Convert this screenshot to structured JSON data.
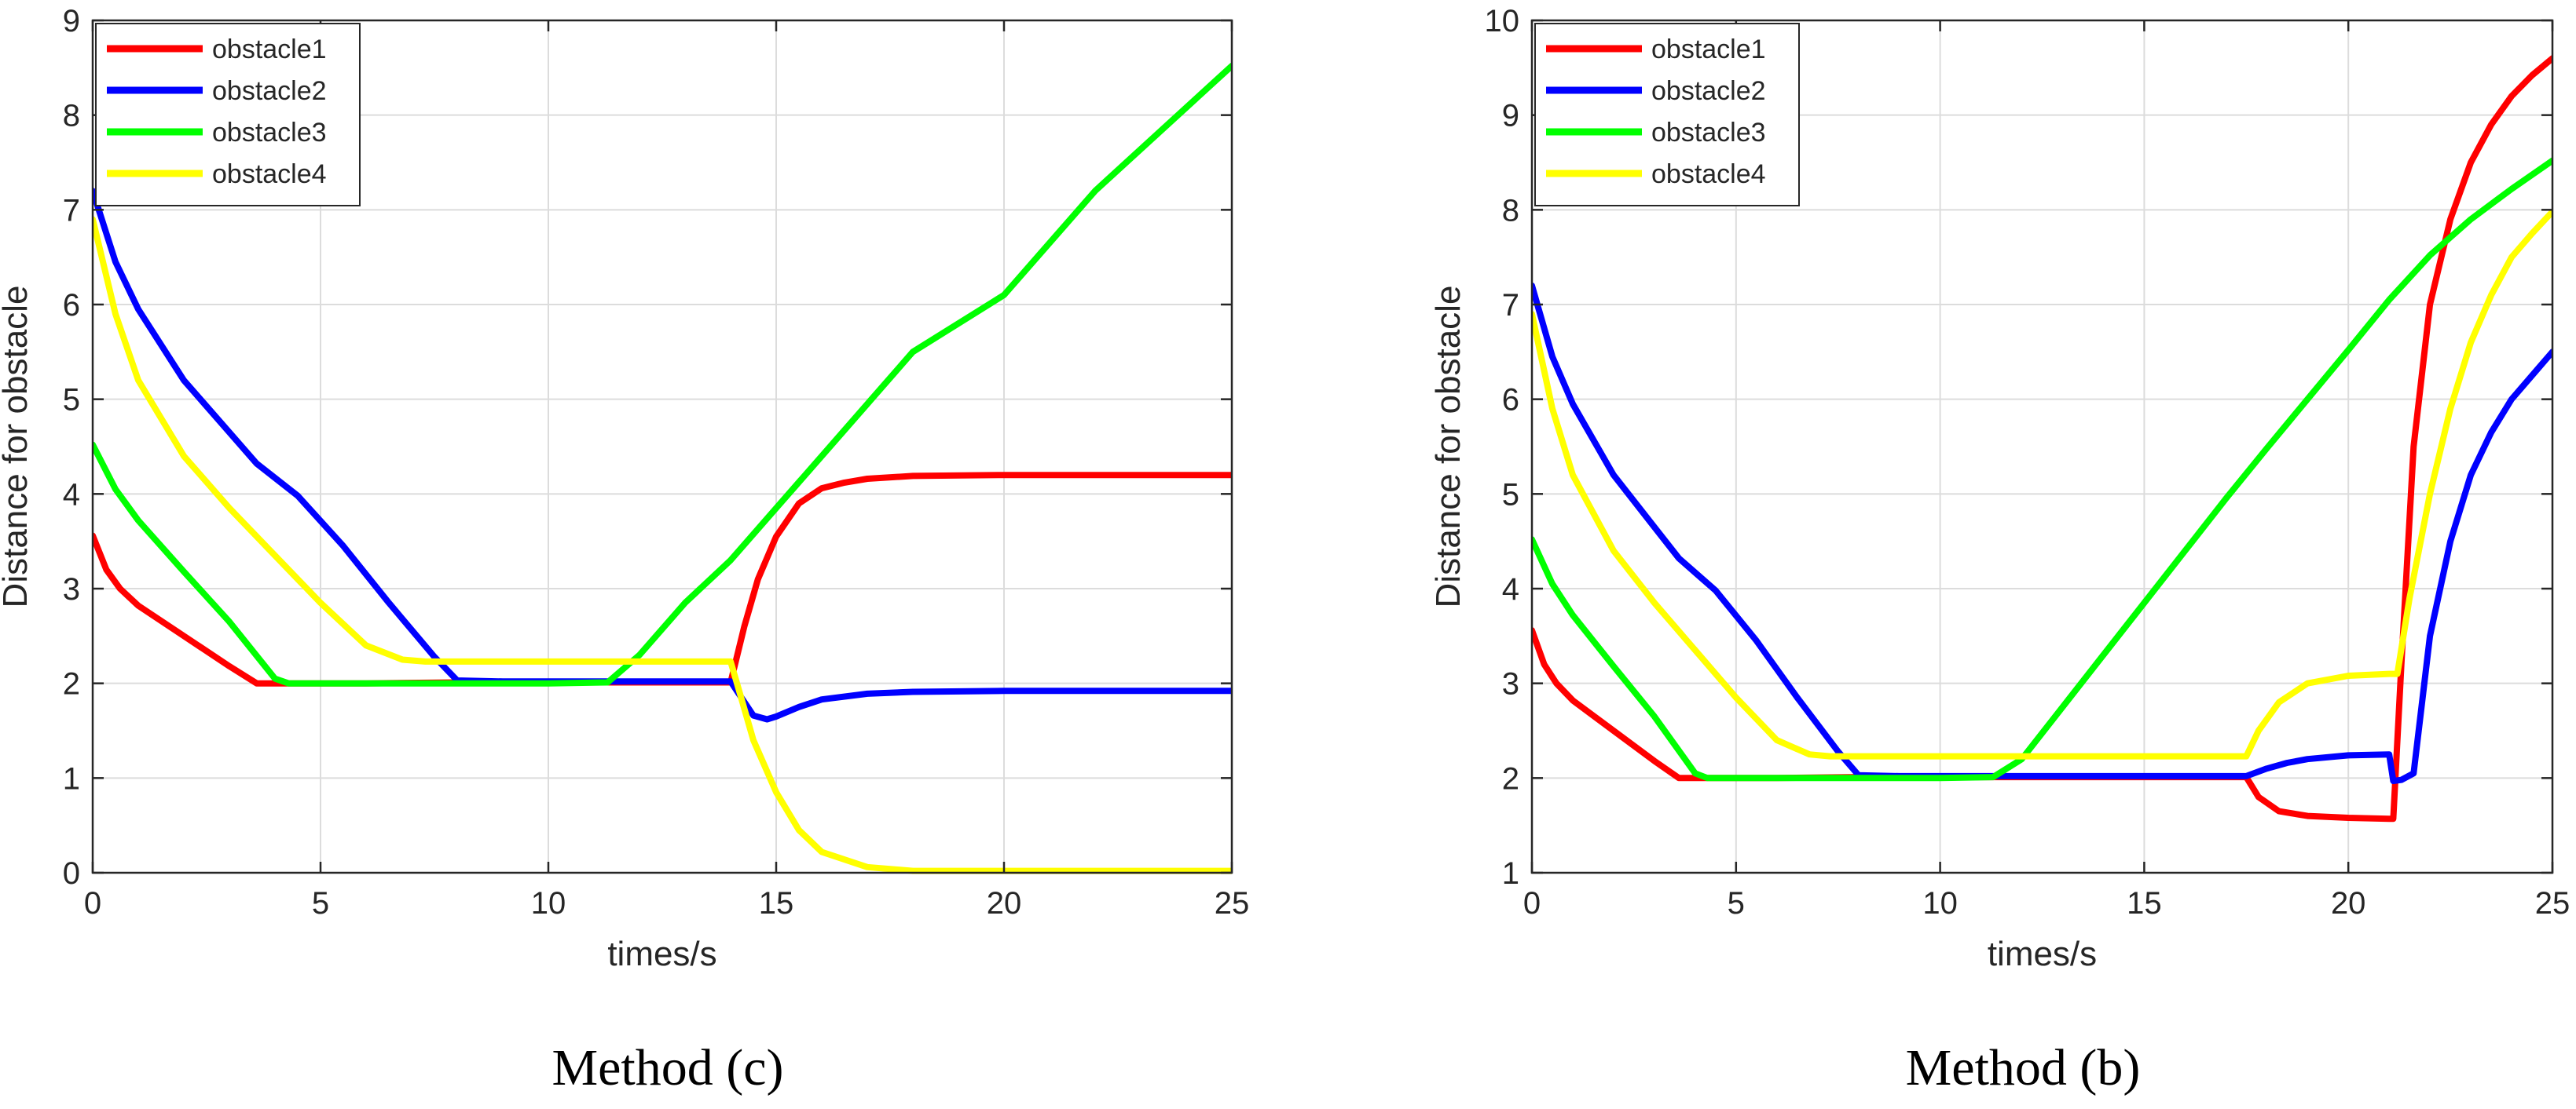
{
  "chart_data": [
    {
      "type": "line",
      "caption": "Method (c)",
      "xlabel": "times/s",
      "ylabel": "Distance for obstacle",
      "xlim": [
        0,
        25
      ],
      "ylim": [
        0,
        9
      ],
      "xticks": [
        "0",
        "5",
        "10",
        "15",
        "20",
        "25"
      ],
      "yticks": [
        "0",
        "1",
        "2",
        "3",
        "4",
        "5",
        "6",
        "7",
        "8",
        "9"
      ],
      "grid": true,
      "legend_position": "top-left",
      "series": [
        {
          "name": "obstacle1",
          "color": "#ff0000",
          "x": [
            0,
            0.3,
            0.6,
            1,
            2,
            3,
            3.6,
            4.2,
            6,
            8,
            10,
            12,
            14,
            14.3,
            14.6,
            15,
            15.5,
            16,
            16.5,
            17,
            18,
            20,
            25
          ],
          "y": [
            3.56,
            3.2,
            3.0,
            2.82,
            2.5,
            2.18,
            2.0,
            2.0,
            2.0,
            2.01,
            2.01,
            2.01,
            2.01,
            2.6,
            3.1,
            3.55,
            3.9,
            4.06,
            4.12,
            4.16,
            4.19,
            4.2,
            4.2
          ]
        },
        {
          "name": "obstacle2",
          "color": "#0000ff",
          "x": [
            0,
            0.5,
            1,
            2,
            3,
            3.6,
            4.5,
            5.5,
            6.5,
            7.5,
            8,
            9,
            10,
            12,
            14,
            14.5,
            14.8,
            15,
            15.5,
            16,
            17,
            18,
            20,
            25
          ],
          "y": [
            7.2,
            6.45,
            5.95,
            5.2,
            4.65,
            4.32,
            3.98,
            3.45,
            2.85,
            2.28,
            2.03,
            2.02,
            2.02,
            2.02,
            2.02,
            1.66,
            1.62,
            1.65,
            1.75,
            1.83,
            1.89,
            1.91,
            1.92,
            1.92
          ]
        },
        {
          "name": "obstacle3",
          "color": "#00ff00",
          "x": [
            0,
            0.5,
            1,
            2,
            3,
            4,
            4.3,
            6,
            8,
            10,
            11.3,
            12,
            13,
            14,
            15,
            16,
            17,
            18,
            20,
            22,
            25
          ],
          "y": [
            4.52,
            4.05,
            3.72,
            3.18,
            2.65,
            2.05,
            2.0,
            2.0,
            2.0,
            2.0,
            2.01,
            2.3,
            2.85,
            3.3,
            3.85,
            4.4,
            4.95,
            5.5,
            6.1,
            7.2,
            8.52
          ]
        },
        {
          "name": "obstacle4",
          "color": "#ffff00",
          "x": [
            0,
            0.5,
            1,
            2,
            3,
            4,
            5,
            6,
            6.8,
            7.3,
            8,
            10,
            12,
            14,
            14.2,
            14.5,
            15,
            15.5,
            16,
            17,
            18,
            20,
            25
          ],
          "y": [
            6.9,
            5.9,
            5.2,
            4.4,
            3.85,
            3.35,
            2.85,
            2.4,
            2.25,
            2.23,
            2.23,
            2.23,
            2.23,
            2.23,
            1.9,
            1.4,
            0.85,
            0.45,
            0.22,
            0.06,
            0.02,
            0.02,
            0.02
          ]
        }
      ]
    },
    {
      "type": "line",
      "caption": "Method (b)",
      "xlabel": "times/s",
      "ylabel": "Distance for obstacle",
      "xlim": [
        0,
        25
      ],
      "ylim": [
        1,
        10
      ],
      "xticks": [
        "0",
        "5",
        "10",
        "15",
        "20",
        "25"
      ],
      "yticks": [
        "1",
        "2",
        "3",
        "4",
        "5",
        "6",
        "7",
        "8",
        "9",
        "10"
      ],
      "grid": true,
      "legend_position": "top-left",
      "series": [
        {
          "name": "obstacle1",
          "color": "#ff0000",
          "x": [
            0,
            0.3,
            0.6,
            1,
            2,
            3,
            3.6,
            4.2,
            6,
            8,
            10,
            12,
            14,
            16,
            17.5,
            17.8,
            18.3,
            19,
            20,
            21,
            21.1,
            21.3,
            21.6,
            22,
            22.5,
            23,
            23.5,
            24,
            24.5,
            25
          ],
          "y": [
            3.56,
            3.2,
            3.0,
            2.82,
            2.5,
            2.18,
            2.0,
            2.0,
            2.0,
            2.01,
            2.01,
            2.01,
            2.01,
            2.01,
            2.01,
            1.8,
            1.65,
            1.6,
            1.58,
            1.57,
            1.57,
            3.2,
            5.5,
            7.0,
            7.9,
            8.5,
            8.9,
            9.2,
            9.42,
            9.6
          ]
        },
        {
          "name": "obstacle2",
          "color": "#0000ff",
          "x": [
            0,
            0.5,
            1,
            2,
            3,
            3.6,
            4.5,
            5.5,
            6.5,
            7.5,
            8,
            9,
            10,
            12,
            14,
            16,
            17.5,
            18,
            18.5,
            19,
            20,
            21,
            21.1,
            21.3,
            21.6,
            22,
            22.5,
            23,
            23.5,
            24,
            24.5,
            25
          ],
          "y": [
            7.2,
            6.45,
            5.95,
            5.2,
            4.65,
            4.32,
            3.98,
            3.45,
            2.85,
            2.28,
            2.03,
            2.02,
            2.02,
            2.02,
            2.02,
            2.02,
            2.02,
            2.1,
            2.16,
            2.2,
            2.24,
            2.25,
            1.97,
            1.98,
            2.05,
            3.5,
            4.5,
            5.2,
            5.65,
            6.0,
            6.25,
            6.5
          ]
        },
        {
          "name": "obstacle3",
          "color": "#00ff00",
          "x": [
            0,
            0.5,
            1,
            2,
            3,
            4,
            4.3,
            6,
            8,
            10,
            11.3,
            12,
            13,
            14,
            15,
            16,
            17,
            18,
            19,
            20,
            21,
            22,
            23,
            24,
            25
          ],
          "y": [
            4.52,
            4.05,
            3.72,
            3.18,
            2.65,
            2.05,
            2.0,
            2.0,
            2.0,
            2.0,
            2.01,
            2.2,
            2.75,
            3.3,
            3.85,
            4.4,
            4.95,
            5.48,
            6.0,
            6.52,
            7.05,
            7.52,
            7.9,
            8.22,
            8.52
          ]
        },
        {
          "name": "obstacle4",
          "color": "#ffff00",
          "x": [
            0,
            0.5,
            1,
            2,
            3,
            4,
            5,
            6,
            6.8,
            7.3,
            8,
            10,
            12,
            14,
            16,
            17.5,
            17.8,
            18.3,
            19,
            20,
            21,
            21.2,
            21.5,
            22,
            22.5,
            23,
            23.5,
            24,
            24.5,
            25
          ],
          "y": [
            6.9,
            5.9,
            5.2,
            4.4,
            3.85,
            3.35,
            2.85,
            2.4,
            2.25,
            2.23,
            2.23,
            2.23,
            2.23,
            2.23,
            2.23,
            2.23,
            2.5,
            2.8,
            3.0,
            3.08,
            3.1,
            3.1,
            3.9,
            5.0,
            5.9,
            6.6,
            7.1,
            7.5,
            7.75,
            7.98
          ]
        }
      ]
    }
  ]
}
